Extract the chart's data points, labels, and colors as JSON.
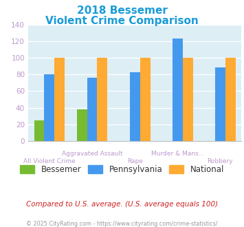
{
  "title_line1": "2018 Bessemer",
  "title_line2": "Violent Crime Comparison",
  "title_color": "#1a9cd8",
  "bessemer": [
    25,
    38,
    0,
    0,
    0
  ],
  "pennsylvania": [
    80,
    76,
    83,
    124,
    89
  ],
  "national": [
    100,
    100,
    100,
    100,
    100
  ],
  "bessemer_color": "#77bb33",
  "pennsylvania_color": "#4499ee",
  "national_color": "#ffaa33",
  "ylim": [
    0,
    140
  ],
  "yticks": [
    0,
    20,
    40,
    60,
    80,
    100,
    120,
    140
  ],
  "bg_color": "#ddeef5",
  "fig_bg": "#ffffff",
  "footer_text": "Compared to U.S. average. (U.S. average equals 100)",
  "footer_color": "#cc2222",
  "copyright_text": "© 2025 CityRating.com - https://www.cityrating.com/crime-statistics/",
  "copyright_color": "#999999",
  "legend_labels": [
    "Bessemer",
    "Pennsylvania",
    "National"
  ],
  "tick_color": "#bb99cc",
  "top_labels": [
    "",
    "Aggravated Assault",
    "",
    "Murder & Mans...",
    ""
  ],
  "bot_labels": [
    "All Violent Crime",
    "",
    "Rape",
    "",
    "Robbery"
  ]
}
